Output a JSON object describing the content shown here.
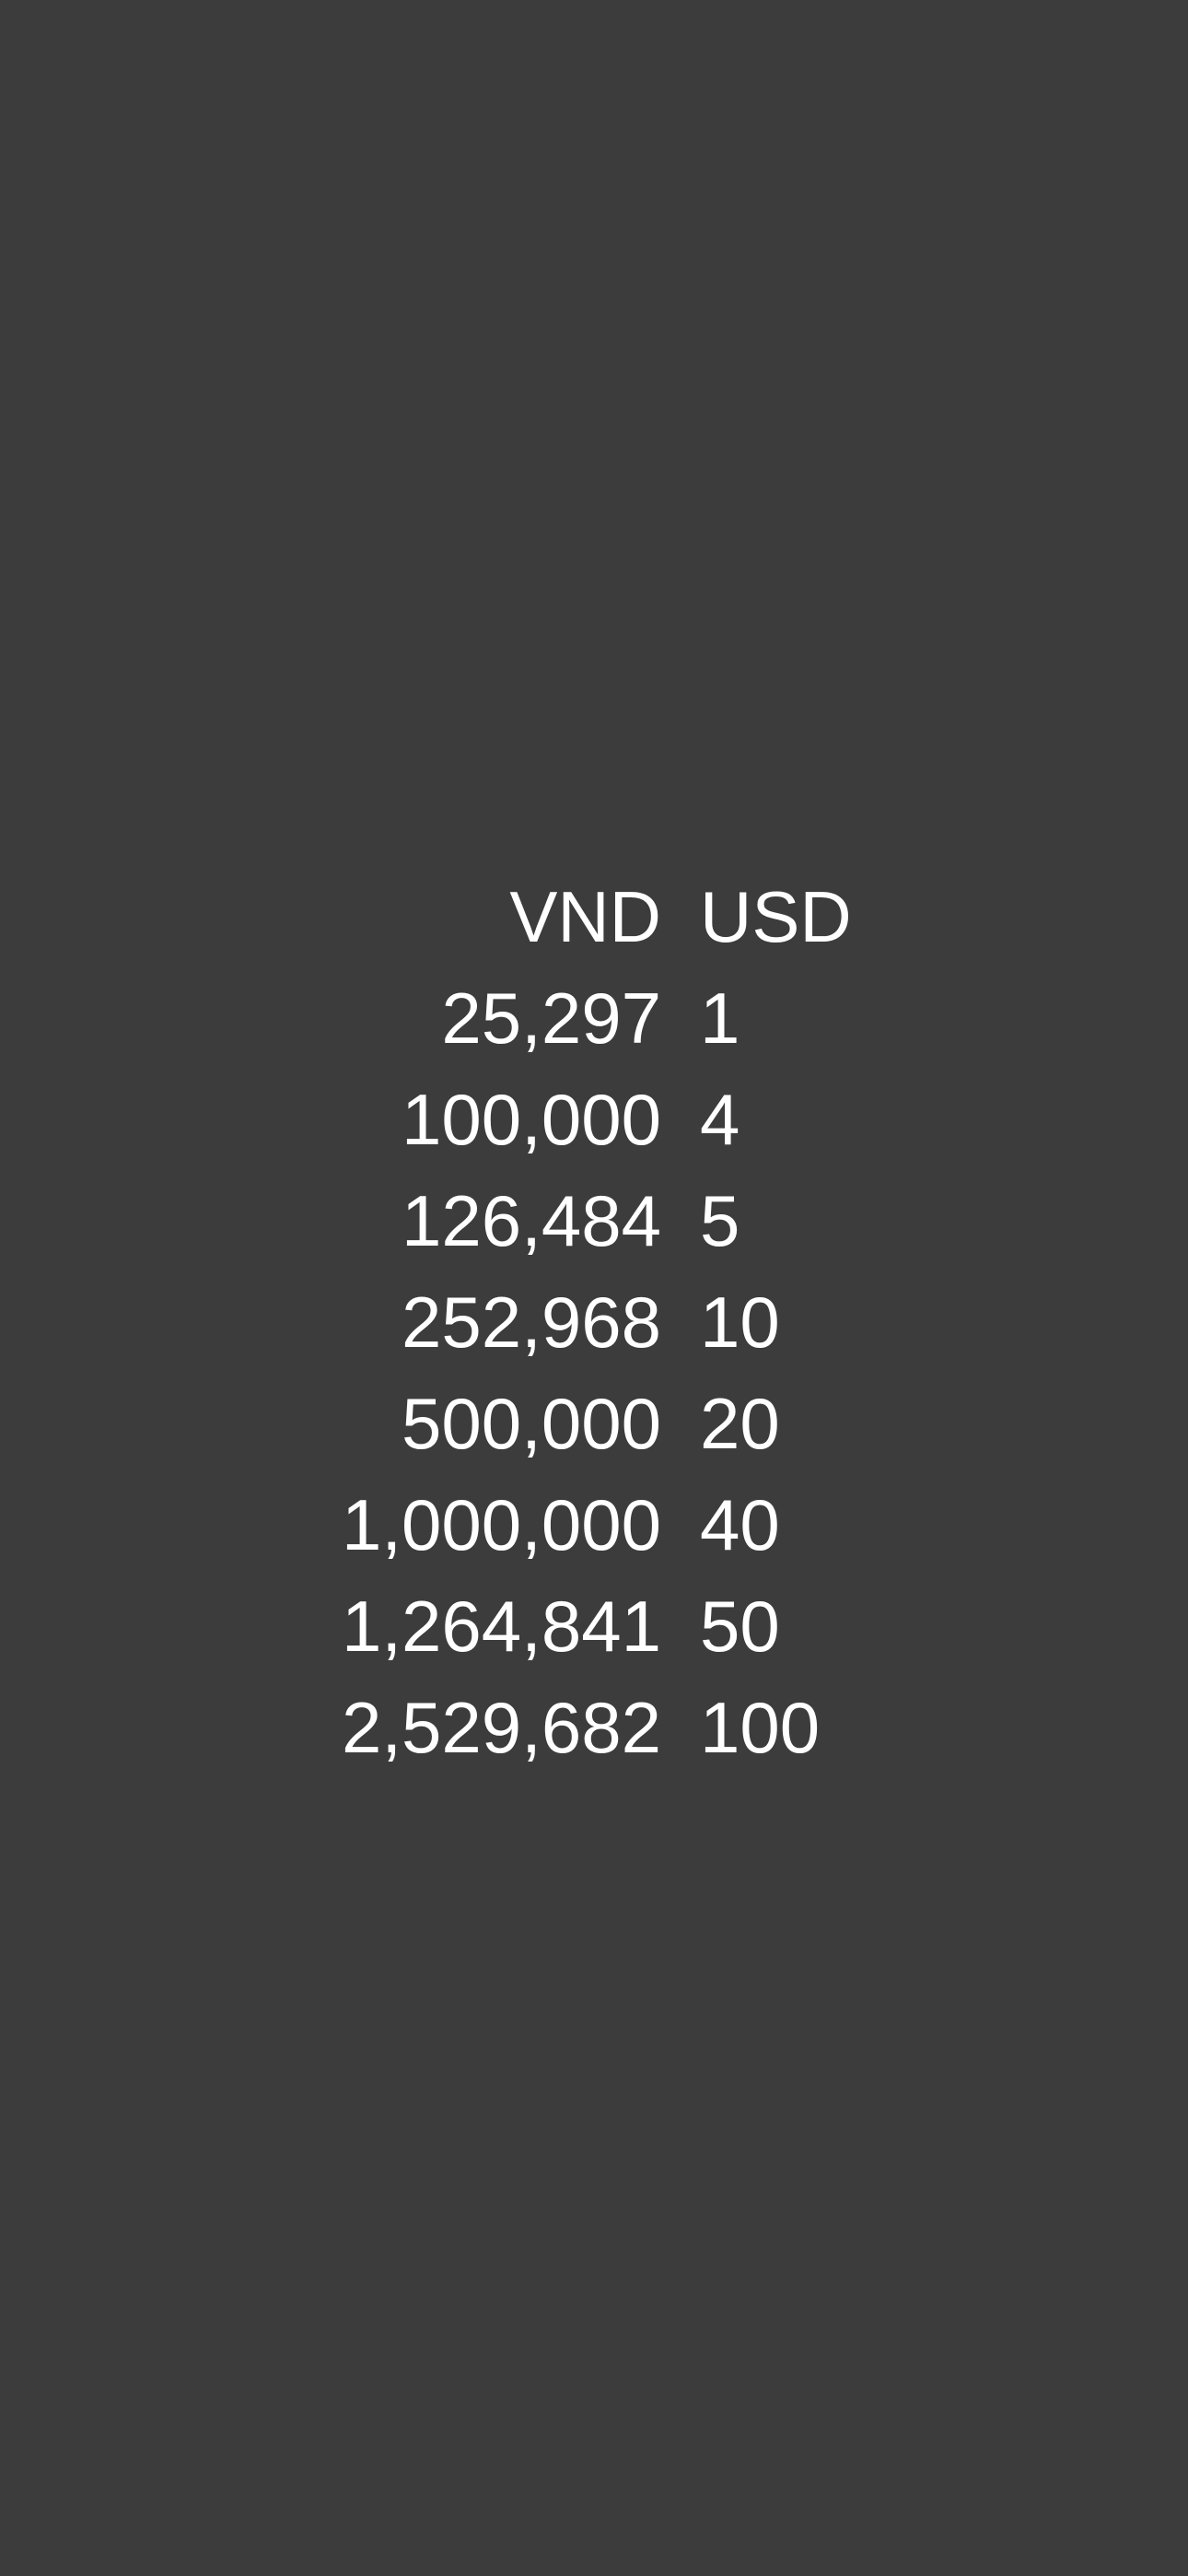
{
  "table": {
    "headers": {
      "vnd": "VND",
      "usd": "USD"
    },
    "rows": [
      {
        "vnd": "25,297",
        "usd": "1"
      },
      {
        "vnd": "100,000",
        "usd": "4"
      },
      {
        "vnd": "126,484",
        "usd": "5"
      },
      {
        "vnd": "252,968",
        "usd": "10"
      },
      {
        "vnd": "500,000",
        "usd": "20"
      },
      {
        "vnd": "1,000,000",
        "usd": "40"
      },
      {
        "vnd": "1,264,841",
        "usd": "50"
      },
      {
        "vnd": "2,529,682",
        "usd": "100"
      }
    ]
  },
  "colors": {
    "background": "#3c3c3c",
    "text": "#ffffff"
  }
}
